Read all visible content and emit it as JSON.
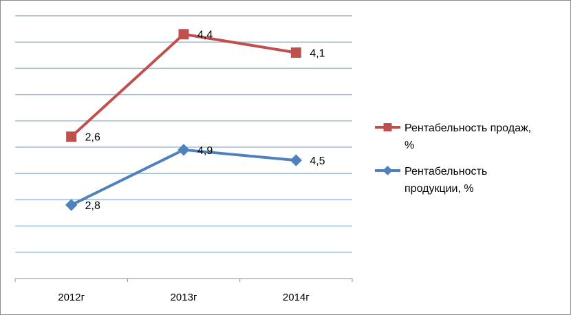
{
  "chart_data": {
    "type": "line",
    "title": "",
    "xlabel": "",
    "ylabel": "",
    "categories": [
      "2012г",
      "2013г",
      "2014г"
    ],
    "y_axis_visible_labels": false,
    "grid": true,
    "legend_position": "right",
    "series": [
      {
        "name_lines": [
          "Рентабельность продаж,",
          "%"
        ],
        "values": [
          2.6,
          4.4,
          4.1
        ],
        "value_labels": [
          "2,6",
          "4,4",
          "4,1"
        ],
        "display_levels": [
          5.4,
          9.3,
          8.6
        ],
        "color": "#c0504d",
        "marker": "square"
      },
      {
        "name_lines": [
          "Рентабельность",
          "продукции, %"
        ],
        "values": [
          2.8,
          4.9,
          4.5
        ],
        "value_labels": [
          "2,8",
          "4,9",
          "4,5"
        ],
        "display_levels": [
          2.8,
          4.9,
          4.5
        ],
        "color": "#4f81bd",
        "marker": "diamond"
      }
    ],
    "display_scale": [
      0,
      10
    ]
  }
}
